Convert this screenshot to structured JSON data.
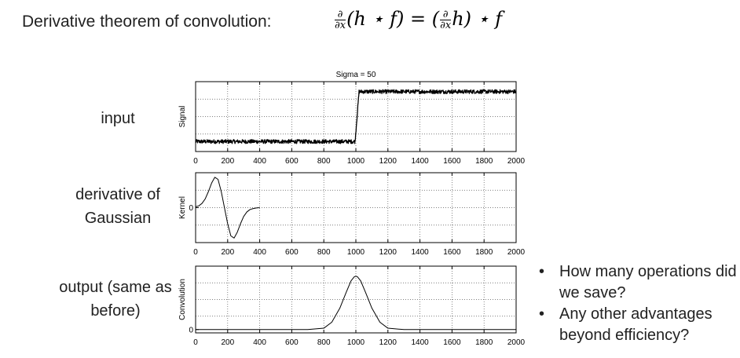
{
  "slide": {
    "heading": "Derivative theorem of convolution:",
    "formula": {
      "d_num": "∂",
      "d_den": "∂x",
      "left": "(h ⋆ f) = (",
      "right": "h) ⋆ f"
    },
    "bullets": [
      {
        "symbol": "•",
        "text": "How many operations did we save?"
      },
      {
        "symbol": "•",
        "text": "Any other advantages beyond efficiency?"
      }
    ]
  },
  "chart_data": [
    {
      "type": "line",
      "title": "Sigma = 50",
      "row_label": "input",
      "ylabel": "Signal",
      "xlim": [
        0,
        2000
      ],
      "xticks": [
        0,
        200,
        400,
        600,
        800,
        1000,
        1200,
        1400,
        1600,
        1800,
        2000
      ],
      "ylim": [
        -0.2,
        1.2
      ],
      "yticks": [],
      "grid": true,
      "series": [
        {
          "x": [
            0,
            995,
            1020,
            2000
          ],
          "y": [
            0,
            0,
            1,
            1
          ],
          "noise": 0.02
        }
      ]
    },
    {
      "type": "line",
      "title": "",
      "row_label": "derivative of Gaussian",
      "ylabel": "Kernel",
      "xlim": [
        0,
        2000
      ],
      "xticks": [
        0,
        200,
        400,
        600,
        800,
        1000,
        1200,
        1400,
        1600,
        1800,
        2000
      ],
      "ylim": [
        -1.15,
        1.15
      ],
      "yticks": [
        0
      ],
      "grid": true,
      "series": [
        {
          "x": [
            0,
            20,
            40,
            60,
            80,
            100,
            120,
            140,
            160,
            180,
            200,
            220,
            240,
            260,
            280,
            300,
            320,
            340,
            360,
            380,
            400
          ],
          "y": [
            0.03,
            0.06,
            0.14,
            0.29,
            0.53,
            0.81,
            1.0,
            0.93,
            0.53,
            0.0,
            -0.53,
            -0.93,
            -1.0,
            -0.81,
            -0.53,
            -0.29,
            -0.14,
            -0.06,
            -0.03,
            -0.01,
            0.0
          ]
        }
      ]
    },
    {
      "type": "line",
      "title": "",
      "row_label": "output (same as before)",
      "ylabel": "Convolution",
      "xlim": [
        0,
        2000
      ],
      "xticks": [
        0,
        200,
        400,
        600,
        800,
        1000,
        1200,
        1400,
        1600,
        1800,
        2000
      ],
      "ylim": [
        -0.0005,
        0.0095
      ],
      "yticks": [
        0
      ],
      "grid": true,
      "series": [
        {
          "x": [
            0,
            700,
            800,
            850,
            900,
            940,
            970,
            990,
            1000,
            1010,
            1030,
            1060,
            1100,
            1150,
            1200,
            1300,
            2000
          ],
          "y": [
            0,
            0,
            0.0002,
            0.0011,
            0.0032,
            0.0056,
            0.0073,
            0.0079,
            0.008,
            0.0079,
            0.0073,
            0.0056,
            0.0032,
            0.0011,
            0.0002,
            0,
            0
          ]
        }
      ]
    }
  ]
}
